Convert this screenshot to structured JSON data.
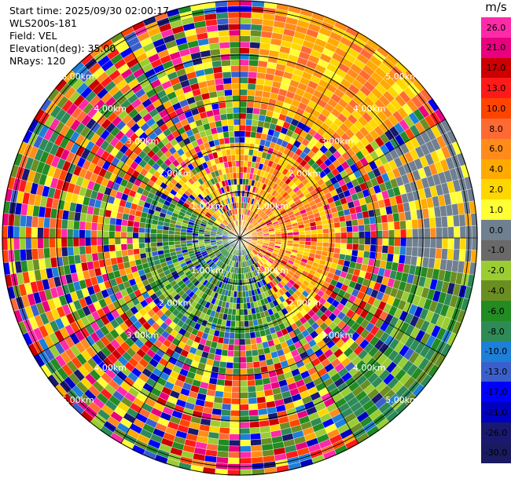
{
  "header": {
    "start_time": "Start time: 2025/09/30 02:00:17",
    "instrument": "WLS200s-181",
    "field": "Field: VEL",
    "elevation": "Elevation(deg): 35.00",
    "nrays": "NRays: 120"
  },
  "colorbar": {
    "unit": "m/s",
    "ticks": [
      "26.0",
      "21.0",
      "17.0",
      "13.0",
      "10.0",
      "8.0",
      "6.0",
      "4.0",
      "2.0",
      "1.0",
      "0.0",
      "-1.0",
      "-2.0",
      "-4.0",
      "-6.0",
      "-8.0",
      "-10.0",
      "-13.0",
      "-17.0",
      "-21.0",
      "-26.0",
      "-30.0"
    ],
    "colors": [
      "#ff2aa8",
      "#e8007f",
      "#cc0000",
      "#ff1a1a",
      "#ff4400",
      "#ff6a33",
      "#ff8c1a",
      "#ffaa00",
      "#ffd700",
      "#ffff33",
      "#708090",
      "#696969",
      "#9acd32",
      "#6b8e23",
      "#228b22",
      "#2e8b57",
      "#1e7fd8",
      "#3a5fcd",
      "#0000ff",
      "#0000c0",
      "#191970",
      "#1a1a60"
    ]
  },
  "ring_labels": {
    "r1": "1.00km",
    "r2": "2.00km",
    "r3": "3.00km",
    "r4": "4.00km",
    "r5": "5.00km"
  }
}
